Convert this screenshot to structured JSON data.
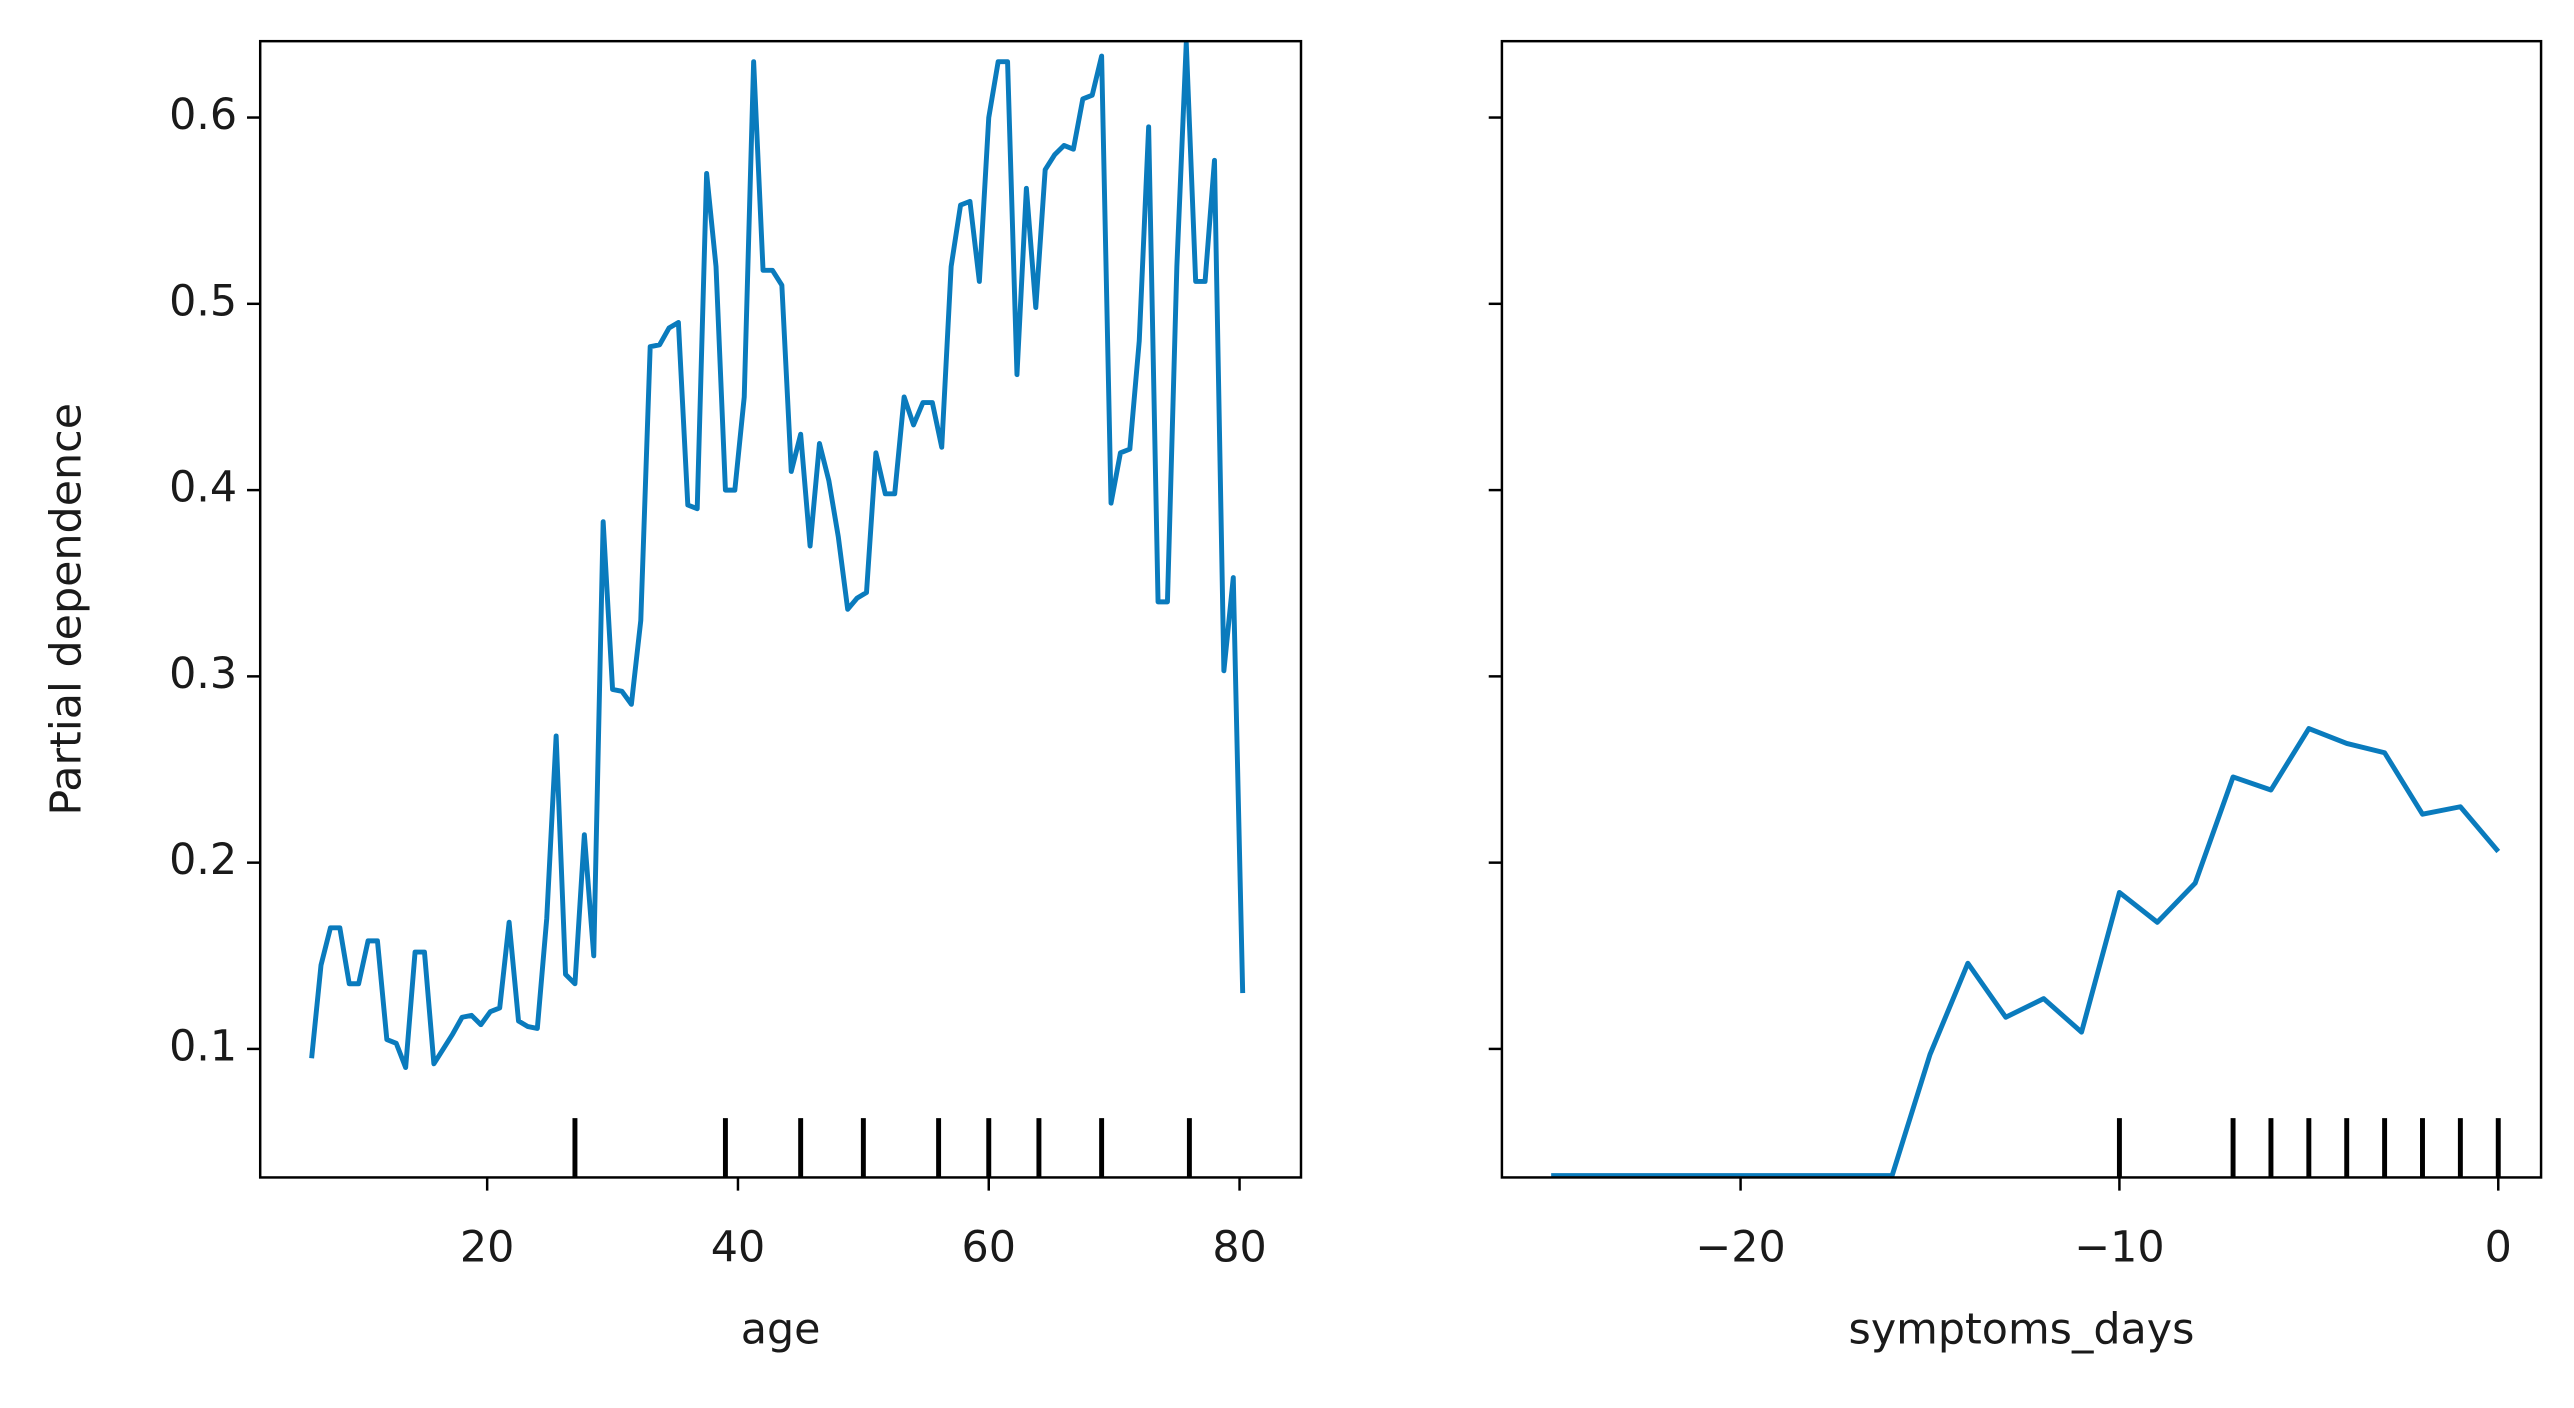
{
  "chart_data": [
    {
      "type": "line",
      "xlabel": "age",
      "ylabel": "Partial dependence",
      "xlim": [
        1.9,
        84.9
      ],
      "ylim": [
        0.031,
        0.641
      ],
      "xticks": [
        20,
        40,
        60,
        80
      ],
      "yticks": [
        0.1,
        0.2,
        0.3,
        0.4,
        0.5,
        0.6
      ],
      "show_ytick_labels": true,
      "deciles": [
        27,
        39,
        45,
        50,
        56,
        60,
        64,
        69,
        76
      ],
      "x": [
        6,
        6.75,
        7.5,
        8.25,
        9,
        9.75,
        10.5,
        11.25,
        12,
        12.75,
        13.5,
        14.25,
        15,
        15.75,
        16.5,
        17.25,
        18,
        18.75,
        19.5,
        20.25,
        21,
        21.75,
        22.5,
        23.25,
        24,
        24.75,
        25.5,
        26.25,
        27,
        27.75,
        28.5,
        29.25,
        30,
        30.75,
        31.5,
        32.25,
        33,
        33.75,
        34.5,
        35.25,
        36,
        36.75,
        37.5,
        38.25,
        39,
        39.75,
        40.5,
        41.25,
        42,
        42.75,
        43.5,
        44.25,
        45,
        45.75,
        46.5,
        47.25,
        48,
        48.75,
        49.5,
        50.25,
        51,
        51.75,
        52.5,
        53.25,
        54,
        54.75,
        55.5,
        56.25,
        57,
        57.75,
        58.5,
        59.25,
        60,
        60.75,
        61.5,
        62.25,
        63,
        63.75,
        64.5,
        65.25,
        66,
        66.75,
        67.5,
        68.25,
        69,
        69.75,
        70.5,
        71.25,
        72,
        72.75,
        73.5,
        74.25,
        75,
        75.75,
        76.5,
        77.25,
        78,
        78.75,
        79.5,
        80.25
      ],
      "series": [
        {
          "color": "#0a7bbd",
          "values": [
            0.095,
            0.145,
            0.165,
            0.165,
            0.135,
            0.135,
            0.158,
            0.158,
            0.105,
            0.103,
            0.09,
            0.152,
            0.152,
            0.092,
            0.1,
            0.108,
            0.117,
            0.118,
            0.113,
            0.12,
            0.122,
            0.168,
            0.115,
            0.112,
            0.111,
            0.17,
            0.268,
            0.14,
            0.135,
            0.215,
            0.15,
            0.383,
            0.293,
            0.292,
            0.285,
            0.33,
            0.477,
            0.478,
            0.487,
            0.49,
            0.392,
            0.39,
            0.57,
            0.52,
            0.4,
            0.4,
            0.45,
            0.63,
            0.518,
            0.518,
            0.51,
            0.41,
            0.43,
            0.37,
            0.425,
            0.405,
            0.375,
            0.336,
            0.342,
            0.345,
            0.42,
            0.398,
            0.398,
            0.45,
            0.435,
            0.447,
            0.447,
            0.423,
            0.52,
            0.553,
            0.555,
            0.512,
            0.6,
            0.63,
            0.63,
            0.462,
            0.562,
            0.498,
            0.572,
            0.58,
            0.585,
            0.583,
            0.61,
            0.612,
            0.633,
            0.393,
            0.42,
            0.422,
            0.48,
            0.595,
            0.34,
            0.34,
            0.52,
            0.64,
            0.512,
            0.512,
            0.577,
            0.303,
            0.353,
            0.13
          ]
        }
      ]
    },
    {
      "type": "line",
      "xlabel": "symptoms_days",
      "xlim": [
        -26.3,
        1.13
      ],
      "ylim": [
        0.031,
        0.641
      ],
      "xticks": [
        {
          "value": -20,
          "label": "−20"
        },
        {
          "value": -10,
          "label": "−10"
        },
        0
      ],
      "yticks": [
        0.1,
        0.2,
        0.3,
        0.4,
        0.5,
        0.6
      ],
      "show_ytick_labels": false,
      "deciles": [
        -10,
        -7,
        -6,
        -5,
        -4,
        -3,
        -2,
        -1,
        0
      ],
      "x": [
        -25,
        -24,
        -23,
        -22,
        -21,
        -20,
        -19,
        -18,
        -17,
        -16,
        -15,
        -14,
        -13,
        -12,
        -11,
        -10,
        -9,
        -8,
        -7,
        -6,
        -5,
        -4,
        -3,
        -2,
        -1,
        0
      ],
      "series": [
        {
          "color": "#0a7bbd",
          "values": [
            0.032,
            0.032,
            0.032,
            0.032,
            0.032,
            0.032,
            0.032,
            0.032,
            0.032,
            0.032,
            0.097,
            0.146,
            0.117,
            0.127,
            0.109,
            0.184,
            0.168,
            0.189,
            0.246,
            0.239,
            0.272,
            0.264,
            0.259,
            0.226,
            0.23,
            0.206
          ]
        }
      ]
    }
  ]
}
